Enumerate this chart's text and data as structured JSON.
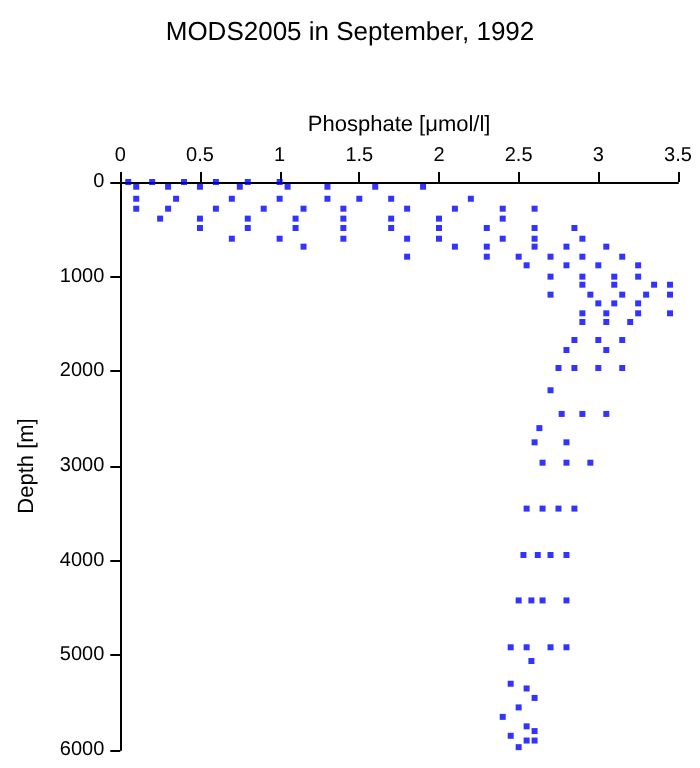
{
  "chart_data": {
    "type": "scatter",
    "title": "MODS2005 in September, 1992",
    "xlabel": "Phosphate [μmol/l]",
    "ylabel": "Depth [m]",
    "xlim": [
      0,
      3.5
    ],
    "xticks": [
      0,
      0.5,
      1,
      1.5,
      2,
      2.5,
      3,
      3.5
    ],
    "ylim": [
      6000,
      0
    ],
    "yticks": [
      0,
      1000,
      2000,
      3000,
      4000,
      5000,
      6000
    ],
    "grid": false,
    "marker": "square",
    "series": [
      {
        "color": "#0000ff",
        "x": [
          0.05,
          0.2,
          0.4,
          0.6,
          0.8,
          1.0,
          0.1,
          0.3,
          0.5,
          0.75,
          1.05,
          1.3,
          1.6,
          1.9,
          0.1,
          0.35,
          0.7,
          1.0,
          1.3,
          1.5,
          1.7,
          2.2,
          0.1,
          0.3,
          0.6,
          0.9,
          1.15,
          1.4,
          1.8,
          2.1,
          2.4,
          2.6,
          0.25,
          0.5,
          0.8,
          1.1,
          1.4,
          1.7,
          2.0,
          2.4,
          0.5,
          0.8,
          1.1,
          1.4,
          1.7,
          2.0,
          2.3,
          2.6,
          2.85,
          0.7,
          1.0,
          1.4,
          1.8,
          2.0,
          2.4,
          2.6,
          2.9,
          1.15,
          2.1,
          2.3,
          2.6,
          2.8,
          3.05,
          1.8,
          2.3,
          2.5,
          2.7,
          2.9,
          3.15,
          2.55,
          2.8,
          3.0,
          3.25,
          2.7,
          2.9,
          3.1,
          3.25,
          2.9,
          3.1,
          3.35,
          3.45,
          2.7,
          2.95,
          3.15,
          3.3,
          3.45,
          3.0,
          3.1,
          3.25,
          2.9,
          3.05,
          3.25,
          3.45,
          2.9,
          3.05,
          3.2,
          2.85,
          3.0,
          3.15,
          2.8,
          3.05,
          2.75,
          2.85,
          3.0,
          3.15,
          2.7,
          2.77,
          2.9,
          3.05,
          2.63,
          2.6,
          2.8,
          2.65,
          2.8,
          2.95,
          2.55,
          2.65,
          2.75,
          2.85,
          2.53,
          2.62,
          2.7,
          2.8,
          2.5,
          2.58,
          2.65,
          2.8,
          2.45,
          2.55,
          2.7,
          2.8,
          2.58,
          2.45,
          2.55,
          2.6,
          2.5,
          2.4,
          2.55,
          2.6,
          2.45,
          2.55,
          2.6,
          2.5
        ],
        "values": [
          0,
          0,
          0,
          0,
          0,
          0,
          50,
          50,
          50,
          50,
          50,
          50,
          50,
          50,
          177,
          177,
          177,
          177,
          177,
          177,
          177,
          177,
          282,
          282,
          282,
          282,
          282,
          282,
          282,
          282,
          282,
          282,
          387,
          387,
          387,
          387,
          387,
          387,
          387,
          387,
          486,
          486,
          486,
          486,
          486,
          486,
          486,
          486,
          486,
          599,
          599,
          599,
          599,
          599,
          599,
          599,
          599,
          683,
          683,
          683,
          683,
          683,
          683,
          789,
          789,
          789,
          789,
          789,
          789,
          880,
          880,
          880,
          880,
          1000,
          1000,
          1000,
          1000,
          1085,
          1085,
          1085,
          1085,
          1190,
          1190,
          1190,
          1190,
          1190,
          1282,
          1282,
          1282,
          1387,
          1387,
          1387,
          1387,
          1479,
          1479,
          1479,
          1669,
          1669,
          1669,
          1775,
          1775,
          1965,
          1965,
          1965,
          1965,
          2200,
          2450,
          2450,
          2450,
          2600,
          2750,
          2750,
          2965,
          2965,
          2965,
          3450,
          3450,
          3450,
          3450,
          3940,
          3940,
          3940,
          3940,
          4420,
          4420,
          4420,
          4420,
          4915,
          4915,
          4915,
          4915,
          5060,
          5300,
          5350,
          5450,
          5550,
          5650,
          5750,
          5800,
          5850,
          5900,
          5900,
          5970
        ]
      }
    ]
  }
}
